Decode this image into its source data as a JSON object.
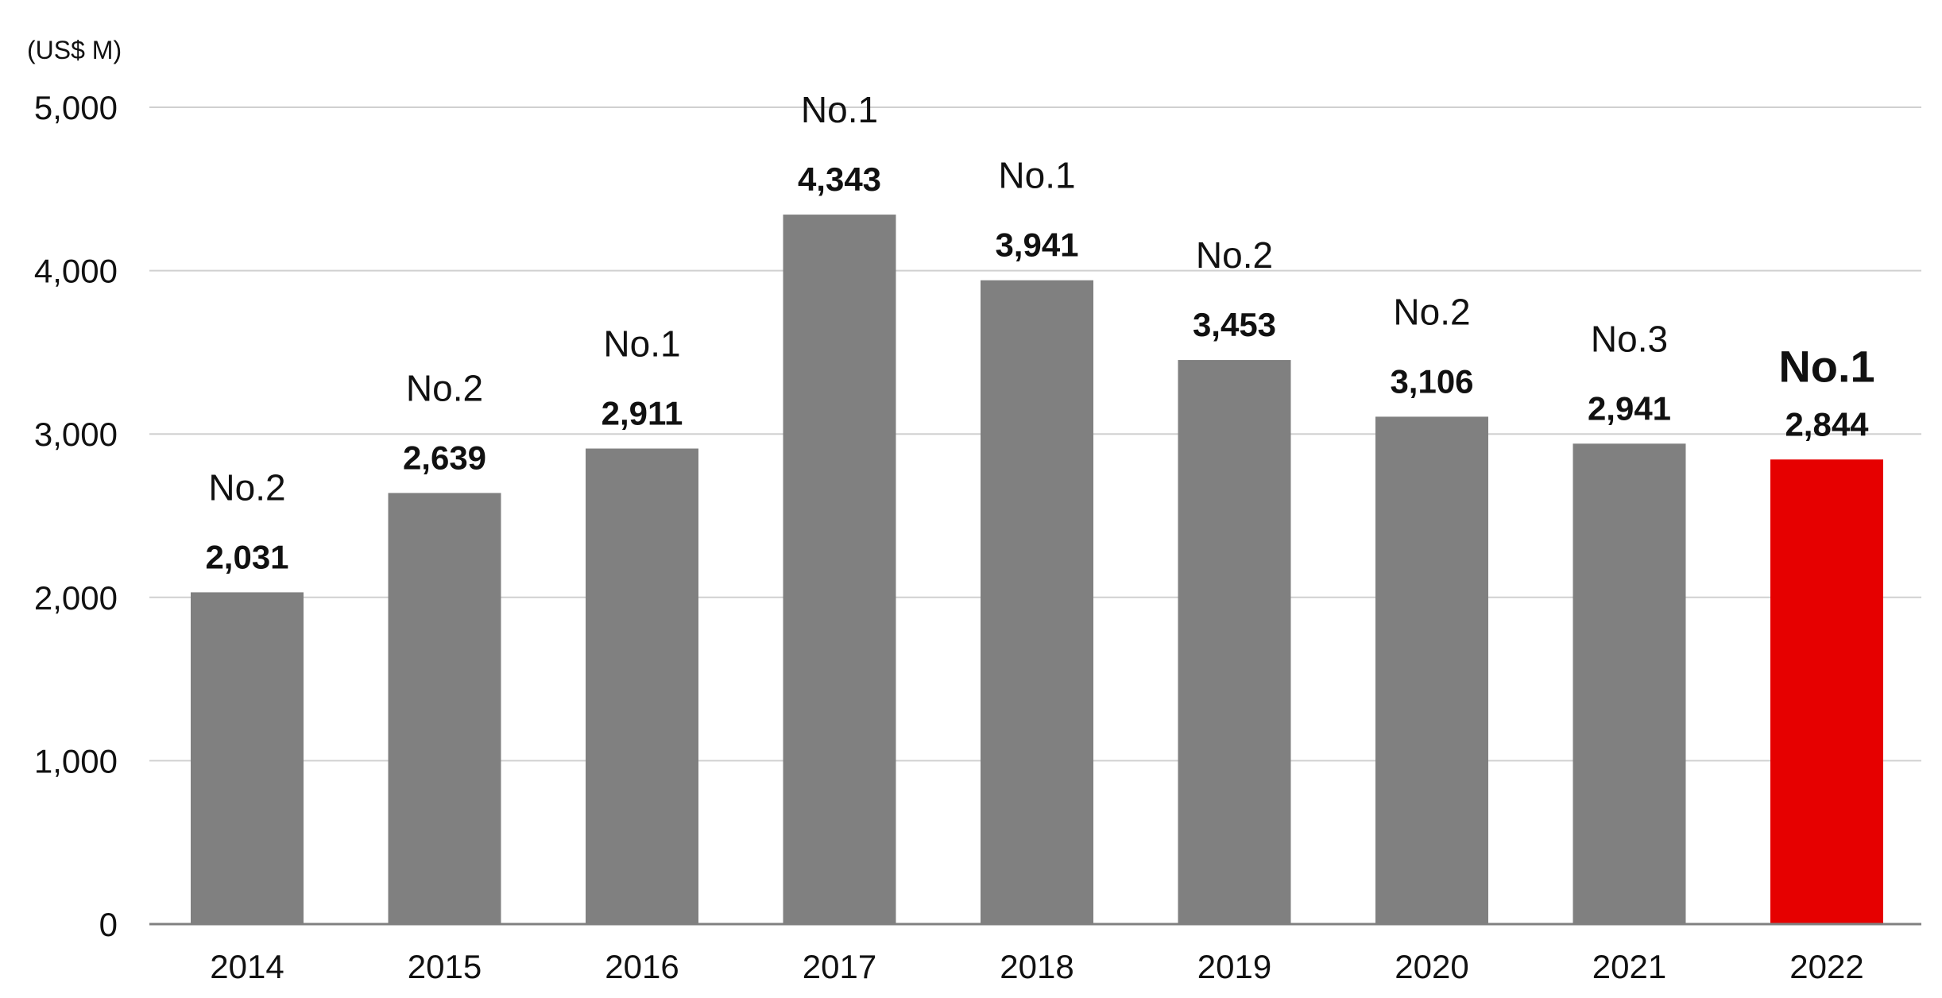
{
  "chart_data": {
    "type": "bar",
    "unit_label": "(US$ M)",
    "title": "",
    "xlabel": "",
    "ylabel": "",
    "categories": [
      "2014",
      "2015",
      "2016",
      "2017",
      "2018",
      "2019",
      "2020",
      "2021",
      "2022"
    ],
    "values": [
      2031,
      2639,
      2911,
      4343,
      3941,
      3453,
      3106,
      2941,
      2844
    ],
    "value_labels": [
      "2,031",
      "2,639",
      "2,911",
      "4,343",
      "3,941",
      "3,453",
      "3,106",
      "2,941",
      "2,844"
    ],
    "rank_labels": [
      "No.2",
      "No.2",
      "No.1",
      "No.1",
      "No.1",
      "No.2",
      "No.2",
      "No.3",
      "No.1"
    ],
    "highlight_index": 8,
    "ylim": [
      0,
      5000
    ],
    "yticks": [
      0,
      1000,
      2000,
      3000,
      4000,
      5000
    ],
    "ytick_labels": [
      "0",
      "1,000",
      "2,000",
      "3,000",
      "4,000",
      "5,000"
    ],
    "grid": true,
    "legend": "none",
    "colors": {
      "bar": "#808080",
      "highlight": "#e60000",
      "grid": "#d0d0d0",
      "axis": "#808080"
    }
  }
}
